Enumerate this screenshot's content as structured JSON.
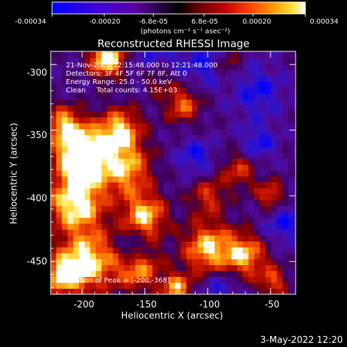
{
  "colorbar": {
    "tick_labels": [
      "-0.00034",
      "-0.00020",
      "-6.8e-05",
      "6.8e-05",
      "0.00020",
      "0.00034"
    ],
    "tick_values": [
      -0.00034,
      -0.0002,
      -6.8e-05,
      6.8e-05,
      0.0002,
      0.00034
    ],
    "range": [
      -0.00034,
      0.00034
    ],
    "units_label": "(photons cm⁻² s⁻¹ asec⁻²)",
    "colormap": [
      "#0000ff",
      "#5a00c0",
      "#000000",
      "#b40000",
      "#ff5000",
      "#ffd000",
      "#ffffff"
    ]
  },
  "chart_data": {
    "type": "heatmap",
    "title": "Reconstructed RHESSI Image",
    "xlabel": "Heliocentric X (arcsec)",
    "ylabel": "Heliocentric Y (arcsec)",
    "xlim": [
      -225,
      -30
    ],
    "ylim": [
      -475,
      -290
    ],
    "x_ticks": [
      -200,
      -150,
      -100,
      -50
    ],
    "y_ticks": [
      -300,
      -350,
      -400,
      -450
    ],
    "annotations": [
      "21-Nov-2002 12:15:48.000 to 12:21:48.000",
      "Detectors: 3F 4F 5F 6F 7F 8F, Att 0",
      "Energy Range: 25.0 - 50.0 keV",
      "Clean     Total counts: 4.15E+03"
    ],
    "peak_label": "Position of Peak = [-200,-368]",
    "peak": [
      -200,
      -368
    ]
  },
  "footer": {
    "timestamp": "3-May-2022 12:20"
  }
}
